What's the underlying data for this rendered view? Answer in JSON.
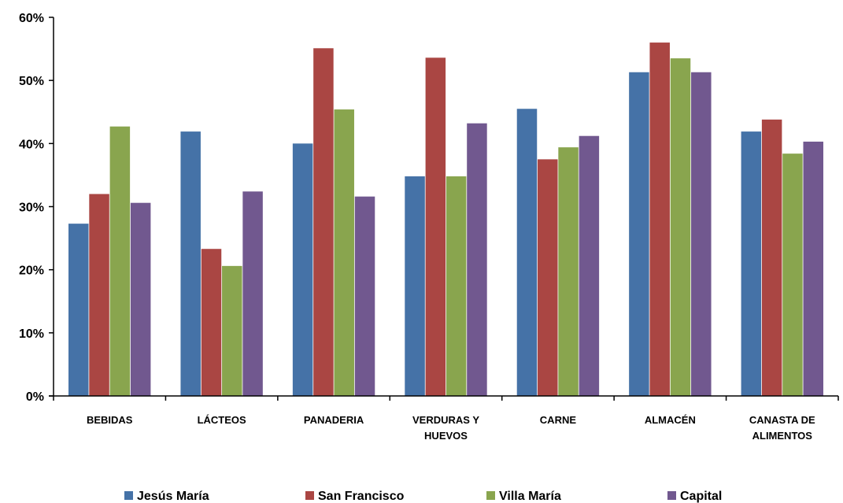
{
  "chart_data": {
    "type": "bar",
    "title": "",
    "xlabel": "",
    "ylabel": "",
    "ylim": [
      0,
      60
    ],
    "y_tick_format": "percent",
    "y_ticks": [
      "0%",
      "10%",
      "20%",
      "30%",
      "40%",
      "50%",
      "60%"
    ],
    "grid": false,
    "legend_position": "bottom",
    "categories": [
      [
        "BEBIDAS"
      ],
      [
        "LÁCTEOS"
      ],
      [
        "PANADERIA"
      ],
      [
        "VERDURAS Y",
        "HUEVOS"
      ],
      [
        "CARNE"
      ],
      [
        "ALMACÉN"
      ],
      [
        "CANASTA DE",
        "ALIMENTOS"
      ]
    ],
    "series": [
      {
        "name": "Jesús María",
        "color": "#4572A7",
        "values": [
          27.3,
          41.9,
          40.0,
          34.8,
          45.5,
          51.3,
          41.9
        ]
      },
      {
        "name": "San Francisco",
        "color": "#AA4643",
        "values": [
          32.0,
          23.3,
          55.1,
          53.6,
          37.5,
          56.0,
          43.8
        ]
      },
      {
        "name": "Villa María",
        "color": "#89A54E",
        "values": [
          42.7,
          20.6,
          45.4,
          34.8,
          39.4,
          53.5,
          38.4
        ]
      },
      {
        "name": "Capital",
        "color": "#71588F",
        "values": [
          30.6,
          32.4,
          31.6,
          43.2,
          41.2,
          51.3,
          40.3
        ]
      }
    ]
  }
}
